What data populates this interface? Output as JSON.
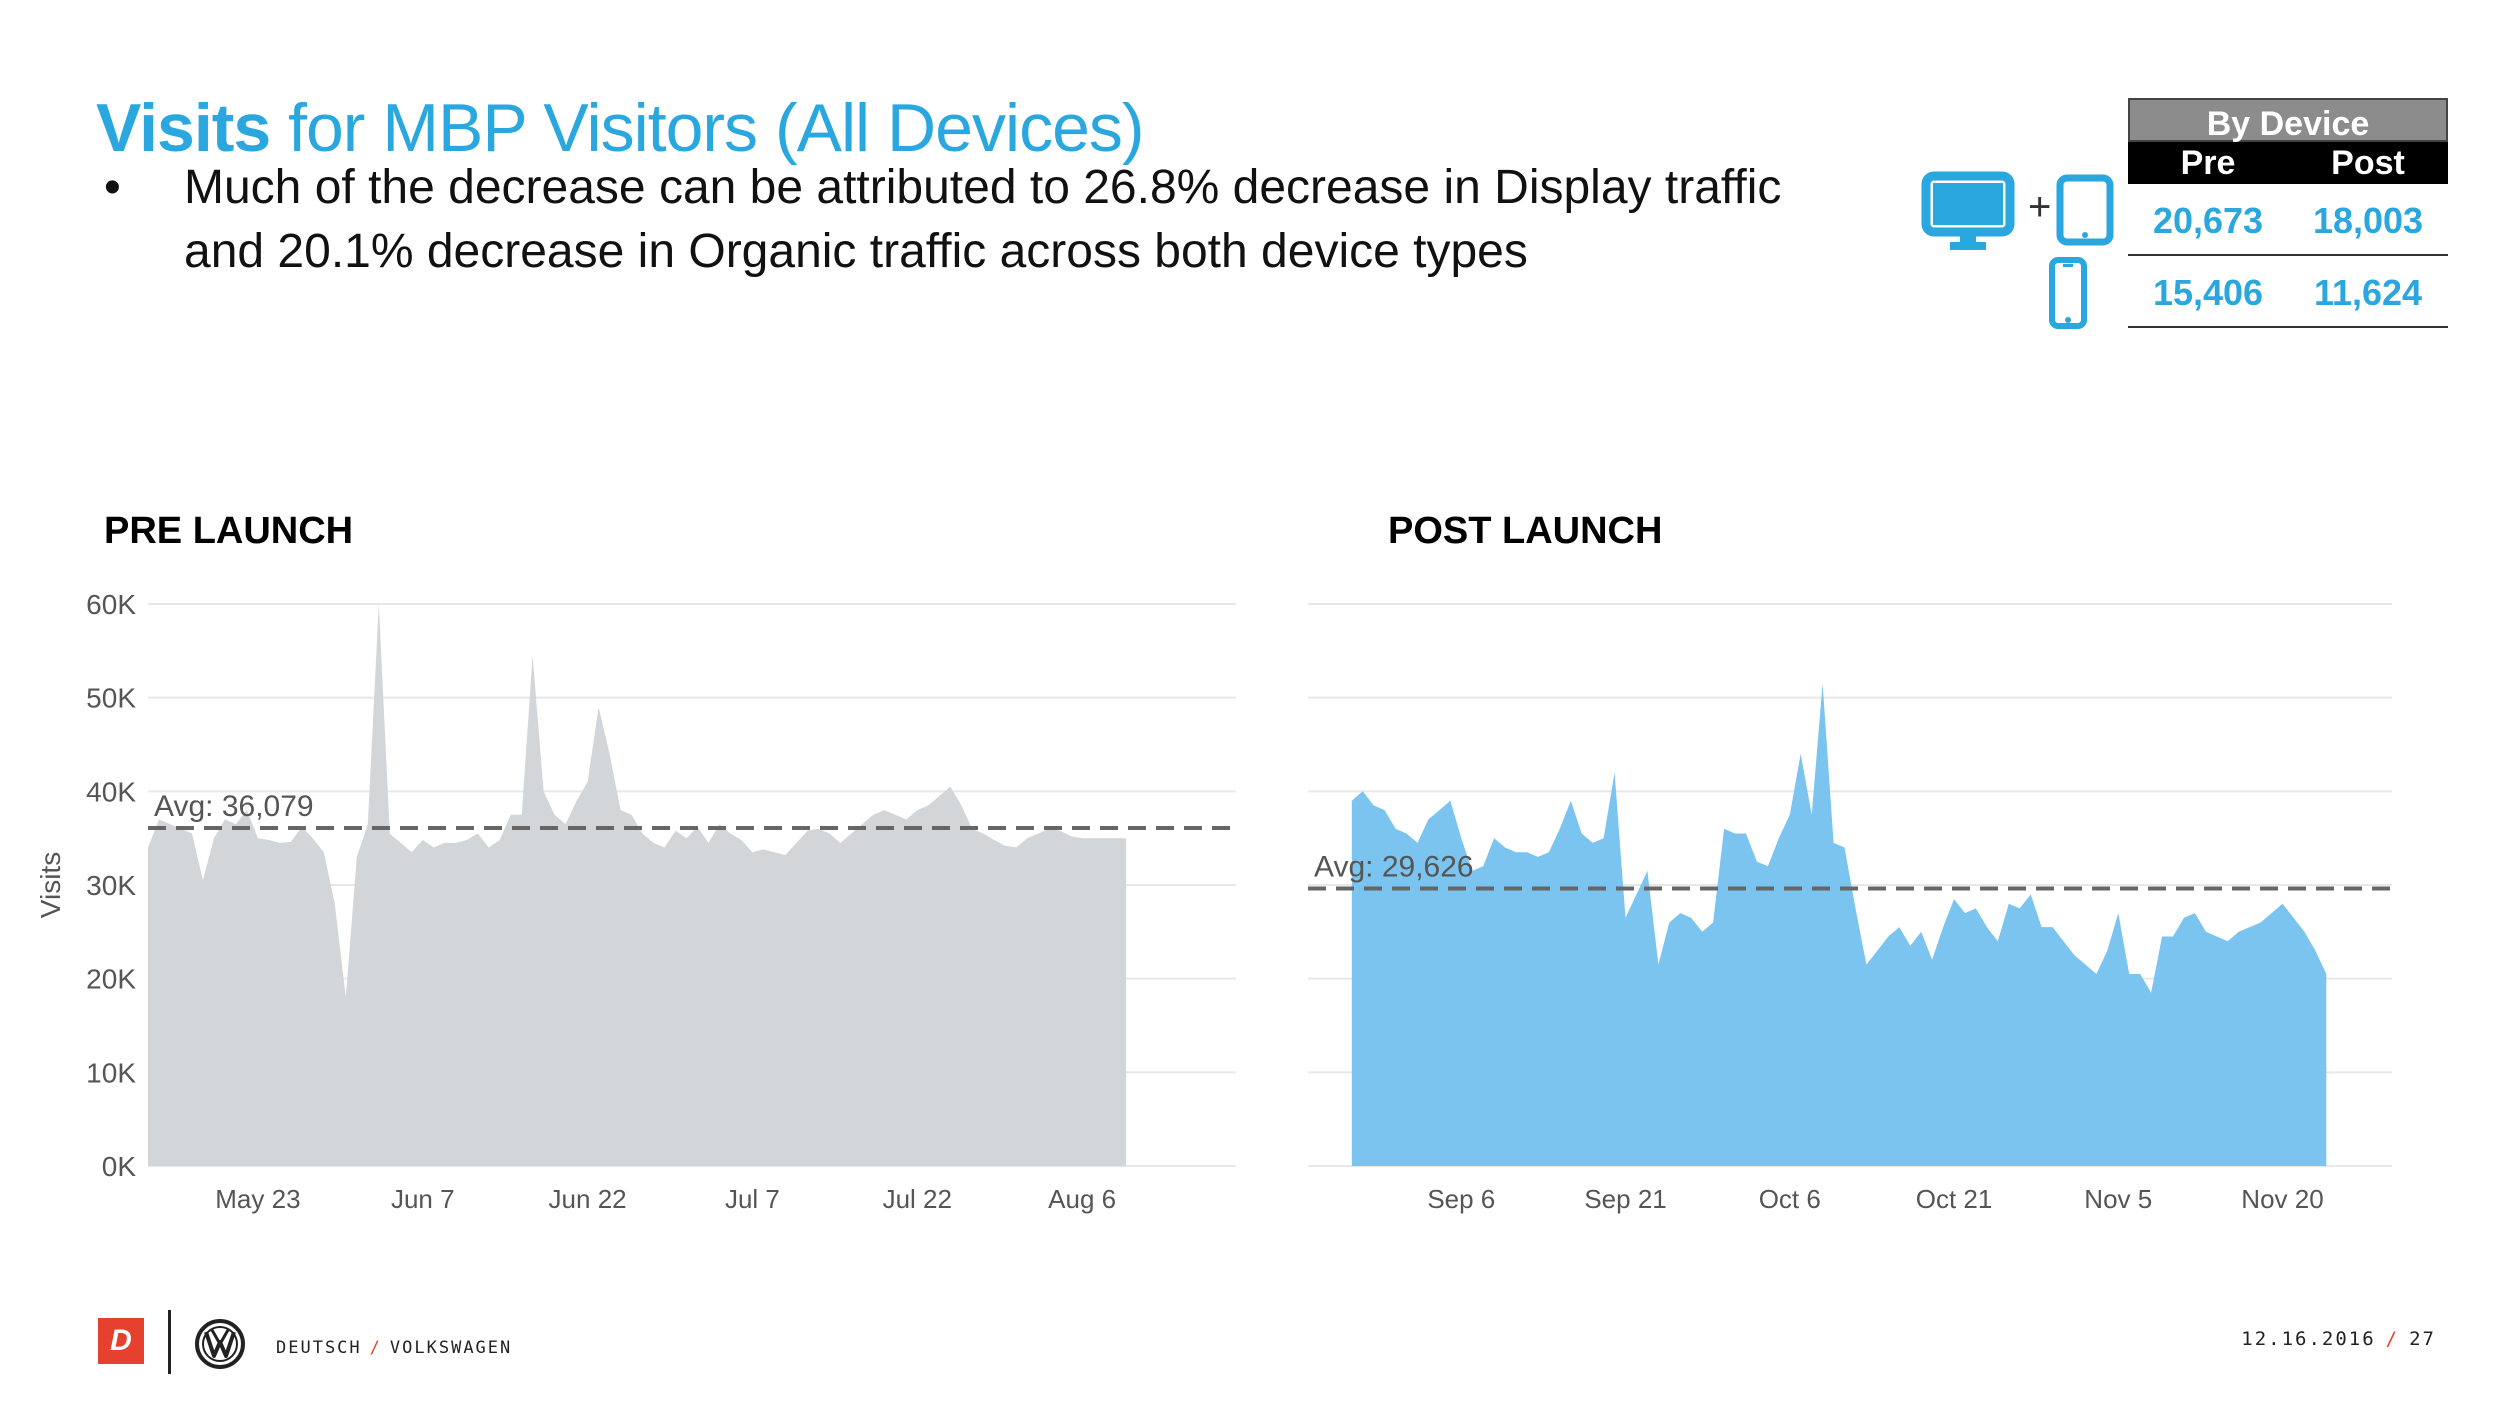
{
  "title": {
    "strong": "Visits",
    "rest": " for MBP Visitors (All Devices)"
  },
  "bullet": {
    "dot": "•",
    "text": "Much of the decrease can be attributed to 26.8% decrease in Display traffic and 20.1% decrease in Organic traffic across both device types"
  },
  "device_table": {
    "header": "By Device",
    "col_pre": "Pre",
    "col_post": "Post",
    "plus": "+",
    "rows": [
      {
        "device": "desktop-plus-tablet",
        "pre": "20,673",
        "post": "18,003"
      },
      {
        "device": "mobile",
        "pre": "15,406",
        "post": "11,624"
      }
    ]
  },
  "colors": {
    "accent": "#2aa7df",
    "pre_fill": "#d3d6d8",
    "post_fill": "#7ac4ef",
    "avg_line": "#666666",
    "brand_red": "#e5412e"
  },
  "chart_data": [
    {
      "type": "area",
      "name": "PRE LAUNCH",
      "ylabel": "Visits",
      "ylim": [
        0,
        60000
      ],
      "yticks": [
        0,
        10000,
        20000,
        30000,
        40000,
        50000,
        60000
      ],
      "ytick_labels": [
        "0K",
        "10K",
        "20K",
        "30K",
        "40K",
        "50K",
        "60K"
      ],
      "x_range_days": [
        0,
        99
      ],
      "xtick_days": [
        10,
        25,
        40,
        55,
        70,
        85
      ],
      "xtick_labels": [
        "May 23",
        "Jun 7",
        "Jun 22",
        "Jul 7",
        "Jul 22",
        "Aug 6"
      ],
      "data_start_day": 0,
      "avg": 36079,
      "avg_label": "Avg: 36,079",
      "values": [
        34000,
        37000,
        36500,
        36000,
        35500,
        30500,
        35000,
        37000,
        36500,
        38000,
        35000,
        34800,
        34500,
        34600,
        36200,
        35000,
        33500,
        28000,
        18000,
        33000,
        36500,
        60000,
        35500,
        34500,
        33500,
        34800,
        34000,
        34500,
        34500,
        34800,
        35500,
        34000,
        34800,
        37500,
        37500,
        54500,
        40000,
        37500,
        36500,
        39000,
        41000,
        49000,
        44000,
        38000,
        37500,
        35500,
        34500,
        34000,
        35800,
        35000,
        36200,
        34500,
        36500,
        35500,
        34800,
        33500,
        33800,
        33500,
        33200,
        34500,
        35800,
        36000,
        35500,
        34500,
        35500,
        36500,
        37500,
        38000,
        37500,
        37000,
        38000,
        38500,
        39500,
        40500,
        38500,
        36000,
        35500,
        34800,
        34200,
        34000,
        35000,
        35500,
        36000,
        35800,
        35200,
        35000,
        35000,
        35000,
        35000,
        35000
      ]
    },
    {
      "type": "area",
      "name": "POST LAUNCH",
      "ylim": [
        0,
        60000
      ],
      "yticks": [
        0,
        10000,
        20000,
        30000,
        40000,
        50000,
        60000
      ],
      "x_range_days": [
        0,
        99
      ],
      "xtick_days": [
        14,
        29,
        44,
        59,
        74,
        89
      ],
      "xtick_labels": [
        "Sep 6",
        "Sep 21",
        "Oct 6",
        "Oct 21",
        "Nov 5",
        "Nov 20"
      ],
      "data_start_day": 4,
      "avg": 29626,
      "avg_label": "Avg: 29,626",
      "values": [
        39000,
        40000,
        38500,
        38000,
        36000,
        35500,
        34500,
        37000,
        38000,
        39000,
        35000,
        31500,
        32000,
        35000,
        34000,
        33500,
        33500,
        33000,
        33500,
        36000,
        39000,
        35500,
        34500,
        35000,
        42000,
        26500,
        29000,
        31500,
        21500,
        26000,
        27000,
        26500,
        25000,
        26000,
        36000,
        35500,
        35500,
        32500,
        32000,
        35000,
        37500,
        44000,
        37500,
        51500,
        34500,
        34000,
        27500,
        21500,
        23000,
        24500,
        25500,
        23500,
        25000,
        22000,
        25500,
        28500,
        27000,
        27500,
        25500,
        24000,
        28000,
        27500,
        29000,
        25500,
        25500,
        24000,
        22500,
        21500,
        20500,
        23000,
        27000,
        20500,
        20500,
        18500,
        24500,
        24500,
        26500,
        27000,
        25000,
        24500,
        24000,
        25000,
        25500,
        26000,
        27000,
        28000,
        26500,
        25000,
        23000,
        20500
      ]
    }
  ],
  "footer": {
    "logo_letter": "D",
    "brand_left": "DEUTSCH",
    "brand_sep": "/",
    "brand_right": "VOLKSWAGEN",
    "date": "12.16.2016",
    "date_sep": "/",
    "page": "27"
  }
}
